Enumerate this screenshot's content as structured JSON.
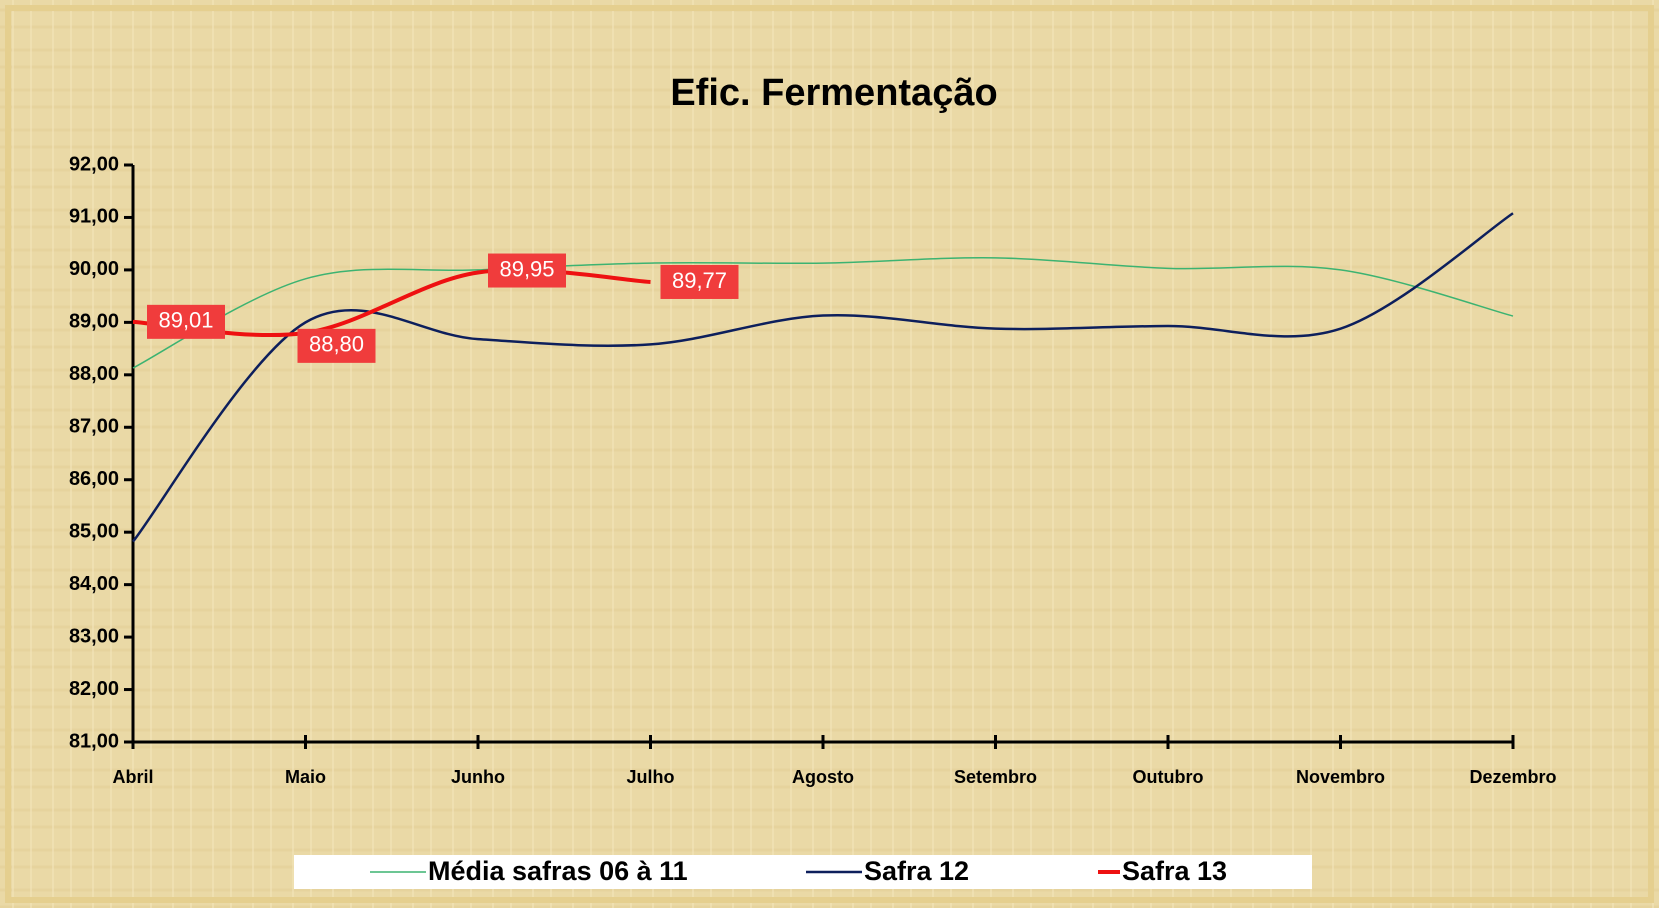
{
  "chart_data": {
    "type": "line",
    "title": "Efic. Fermentação",
    "categories": [
      "Abril",
      "Maio",
      "Junho",
      "Julho",
      "Agosto",
      "Setembro",
      "Outubro",
      "Novembro",
      "Dezembro"
    ],
    "series": [
      {
        "name": "Média safras 06 à 11",
        "color": "#3cb371",
        "width": 1.5,
        "values": [
          88.13,
          89.83,
          90.0,
          90.13,
          90.13,
          90.23,
          90.03,
          90.0,
          89.12
        ]
      },
      {
        "name": "Safra 12",
        "color": "#0d1f5c",
        "width": 2.5,
        "values": [
          84.82,
          89.0,
          88.68,
          88.58,
          89.13,
          88.88,
          88.93,
          88.88,
          91.08
        ]
      },
      {
        "name": "Safra 13",
        "color": "#ee1111",
        "width": 4,
        "values": [
          89.01,
          88.8,
          89.95,
          89.77,
          null,
          null,
          null,
          null,
          null
        ],
        "value_labels": [
          "89,01",
          "88,80",
          "89,95",
          "89,77",
          null,
          null,
          null,
          null,
          null
        ]
      }
    ],
    "ylim": [
      81,
      92
    ],
    "yticks": [
      {
        "value": 81,
        "label": "81,00"
      },
      {
        "value": 82,
        "label": "82,00"
      },
      {
        "value": 83,
        "label": "83,00"
      },
      {
        "value": 84,
        "label": "84,00"
      },
      {
        "value": 85,
        "label": "85,00"
      },
      {
        "value": 86,
        "label": "86,00"
      },
      {
        "value": 87,
        "label": "87,00"
      },
      {
        "value": 88,
        "label": "88,00"
      },
      {
        "value": 89,
        "label": "89,00"
      },
      {
        "value": 90,
        "label": "90,00"
      },
      {
        "value": 91,
        "label": "91,00"
      },
      {
        "value": 92,
        "label": "92,00"
      }
    ],
    "grid": false,
    "legend": "bottom"
  }
}
